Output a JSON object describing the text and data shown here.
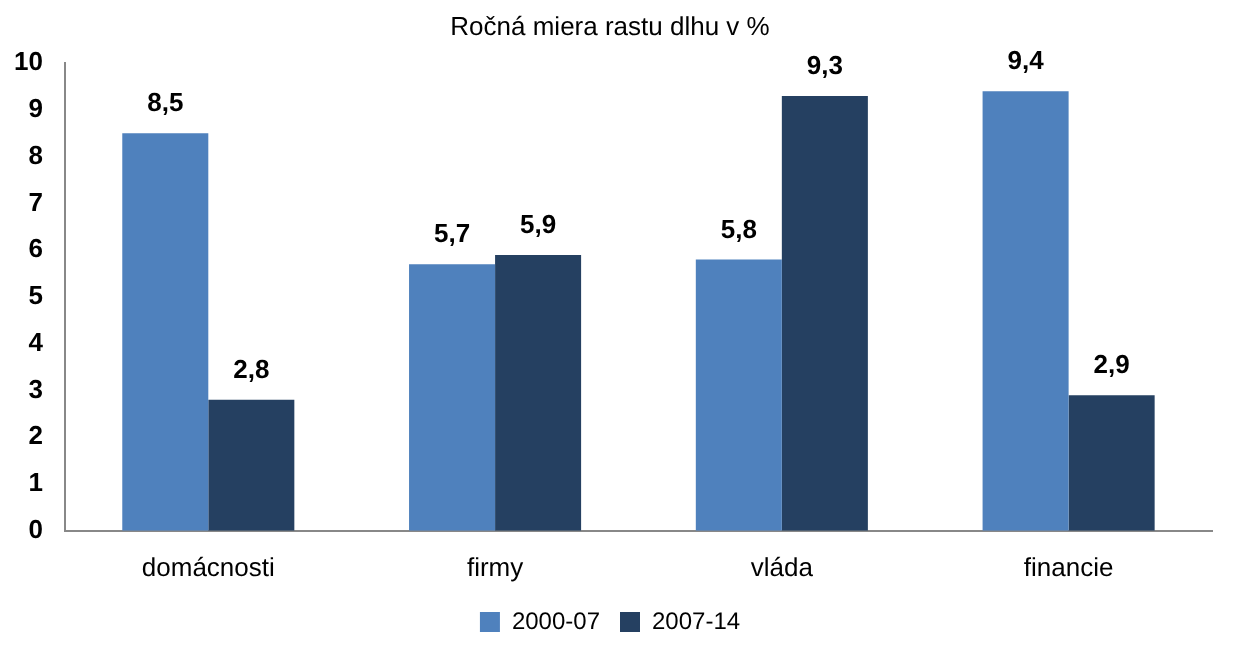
{
  "chart_data": {
    "type": "bar",
    "title": "Ročná miera rastu dlhu v %",
    "categories": [
      "domácnosti",
      "firmy",
      "vláda",
      "financie"
    ],
    "series": [
      {
        "name": "2000-07",
        "color": "#4f81bd",
        "values": [
          8.5,
          5.7,
          5.8,
          9.4
        ],
        "value_labels": [
          "8,5",
          "5,7",
          "5,8",
          "9,4"
        ]
      },
      {
        "name": "2007-14",
        "color": "#254061",
        "values": [
          2.8,
          5.9,
          9.3,
          2.9
        ],
        "value_labels": [
          "2,8",
          "5,9",
          "9,3",
          "2,9"
        ]
      }
    ],
    "ylim": [
      0,
      10
    ],
    "yticks": [
      0,
      1,
      2,
      3,
      4,
      5,
      6,
      7,
      8,
      9,
      10
    ],
    "grid": false,
    "legend": "bottom"
  }
}
